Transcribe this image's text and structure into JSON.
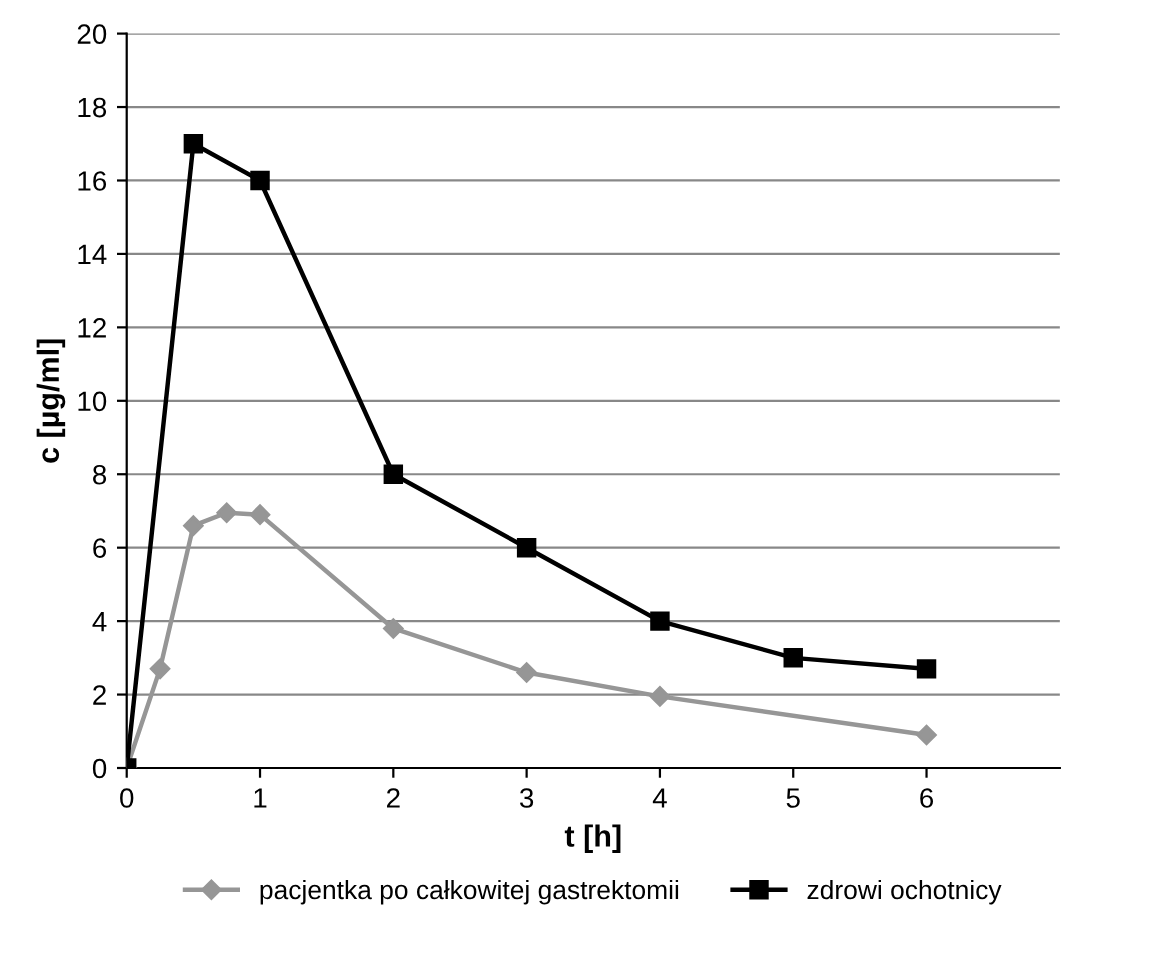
{
  "chart_data": {
    "type": "line",
    "xlabel": "t [h]",
    "ylabel": "c [µg/ml]",
    "xlim": [
      0,
      7
    ],
    "xticks": [
      0,
      1,
      2,
      3,
      4,
      5,
      6
    ],
    "ylim": [
      0,
      20
    ],
    "yticks": [
      0,
      2,
      4,
      6,
      8,
      10,
      12,
      14,
      16,
      18,
      20
    ],
    "grid": "y",
    "legend": "bottom",
    "line_style": "solid",
    "series": [
      {
        "name": "pacjentka po całkowitej gastrektomii",
        "color": "#969696",
        "marker": "diamond",
        "x": [
          0,
          0.25,
          0.5,
          0.75,
          1,
          2,
          3,
          4,
          6
        ],
        "values": [
          0,
          2.7,
          6.6,
          6.95,
          6.9,
          3.8,
          2.6,
          1.95,
          0.9
        ]
      },
      {
        "name": "zdrowi ochotnicy",
        "color": "#000000",
        "marker": "square",
        "x": [
          0,
          0.5,
          1,
          2,
          3,
          4,
          5,
          6
        ],
        "values": [
          0,
          17,
          16,
          8,
          6,
          4,
          3,
          2.7
        ]
      }
    ]
  }
}
